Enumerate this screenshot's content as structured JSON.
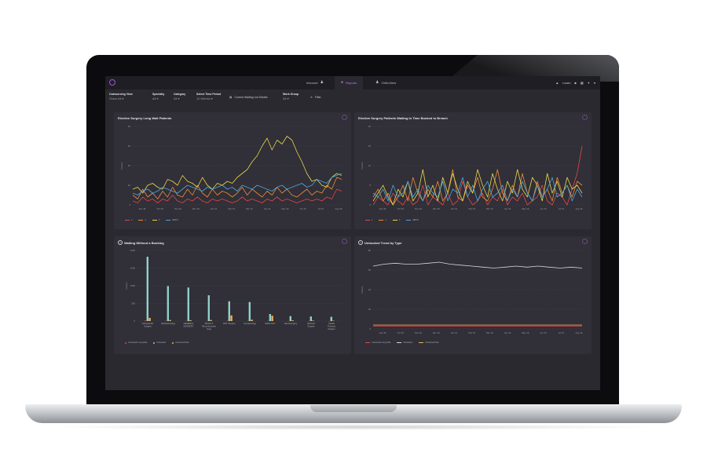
{
  "header": {
    "tabs": [
      {
        "label": "Inbound",
        "icon": "people-icon"
      },
      {
        "label": "Reports",
        "icon": "reports-icon"
      },
      {
        "label": "OrthoView",
        "icon": "people-icon"
      }
    ],
    "user_label": "Learn"
  },
  "filters": [
    {
      "label": "Outsourcing View",
      "value": "Show All"
    },
    {
      "label": "Specialty",
      "value": "All"
    },
    {
      "label": "Category",
      "value": "All"
    },
    {
      "label": "Select Time Period",
      "value": "12 Weeks"
    },
    {
      "label": "Work Group",
      "value": "All"
    }
  ],
  "filter_buttons": {
    "current_waiting": "Current Waiting List Details",
    "filter": "Filter"
  },
  "accent_color": "#a368d8",
  "chart_data": [
    {
      "type": "line",
      "title": "Elective Surgery Long Wait Patients",
      "ylabel": "Patients",
      "ylim": [
        0,
        40
      ],
      "yticks": [
        0,
        10,
        20,
        30,
        40
      ],
      "xticks": [
        "Sep '18",
        "Oct '18",
        "Nov '18",
        "Dec '18",
        "Jan '19",
        "Feb '19",
        "Mar '19",
        "Apr '19",
        "May '19",
        "Jun '19",
        "Jul '19",
        "Aug '19"
      ],
      "series": [
        {
          "name": "1",
          "color": "#e0474c",
          "values": [
            2,
            1,
            4,
            2,
            3,
            1,
            3,
            2,
            5,
            2,
            1,
            3,
            2,
            4,
            2,
            1,
            3,
            2,
            3,
            2,
            1,
            2,
            4,
            2,
            3,
            2,
            1,
            3,
            2,
            4,
            2,
            3,
            2,
            1,
            2,
            3,
            2,
            3,
            2,
            4,
            3,
            8,
            7
          ]
        },
        {
          "name": "2",
          "color": "#ee8a3c",
          "values": [
            5,
            3,
            8,
            4,
            6,
            3,
            7,
            4,
            9,
            5,
            4,
            8,
            5,
            10,
            6,
            4,
            8,
            5,
            7,
            6,
            4,
            6,
            9,
            5,
            8,
            6,
            4,
            7,
            5,
            9,
            6,
            8,
            5,
            4,
            6,
            8,
            5,
            7,
            6,
            10,
            8,
            14,
            13
          ]
        },
        {
          "name": "3",
          "color": "#e8d84a",
          "values": [
            8,
            9,
            6,
            10,
            11,
            9,
            8,
            13,
            12,
            10,
            15,
            12,
            11,
            9,
            14,
            10,
            8,
            11,
            10,
            12,
            11,
            14,
            16,
            18,
            22,
            25,
            30,
            34,
            28,
            33,
            31,
            35,
            33,
            27,
            22,
            16,
            12,
            13,
            10,
            9,
            14,
            16,
            15
          ]
        },
        {
          "name": "MRFS",
          "color": "#4aa8e0",
          "values": [
            6,
            5,
            7,
            8,
            6,
            7,
            9,
            8,
            7,
            6,
            8,
            10,
            9,
            8,
            7,
            9,
            8,
            9,
            10,
            8,
            9,
            7,
            10,
            9,
            8,
            10,
            9,
            8,
            7,
            9,
            10,
            8,
            9,
            10,
            11,
            9,
            10,
            13,
            12,
            11,
            14,
            15,
            16
          ]
        }
      ]
    },
    {
      "type": "line",
      "title": "Elective Surgery Patients Waiting In Time Booked to Breach",
      "ylabel": "Patients",
      "ylim": [
        0,
        20
      ],
      "yticks": [
        0,
        5,
        10,
        15,
        20
      ],
      "xticks": [
        "Sep '18",
        "Oct '18",
        "Nov '18",
        "Dec '18",
        "Jan '19",
        "Feb '19",
        "Mar '19",
        "Apr '19",
        "May '19",
        "Jun '19",
        "Jul '19",
        "Aug '19"
      ],
      "series": [
        {
          "name": "1",
          "color": "#e0474c",
          "values": [
            0,
            2,
            1,
            0,
            3,
            1,
            0,
            2,
            0,
            1,
            5,
            0,
            2,
            1,
            0,
            3,
            0,
            1,
            6,
            2,
            0,
            1,
            3,
            0,
            2,
            1,
            4,
            0,
            2,
            1,
            3,
            0,
            1,
            2,
            5,
            1,
            0,
            3,
            2,
            0,
            4,
            8,
            15
          ]
        },
        {
          "name": "2",
          "color": "#ee8a3c",
          "values": [
            2,
            4,
            1,
            3,
            0,
            2,
            5,
            1,
            7,
            3,
            1,
            4,
            2,
            6,
            1,
            3,
            9,
            2,
            1,
            5,
            3,
            7,
            2,
            1,
            4,
            9,
            3,
            1,
            5,
            2,
            8,
            3,
            1,
            6,
            2,
            4,
            1,
            7,
            3,
            5,
            2,
            6,
            5
          ]
        },
        {
          "name": "3",
          "color": "#e8d84a",
          "values": [
            1,
            3,
            5,
            2,
            0,
            4,
            2,
            6,
            1,
            3,
            9,
            2,
            5,
            1,
            7,
            3,
            8,
            4,
            1,
            6,
            3,
            9,
            5,
            2,
            8,
            4,
            1,
            6,
            3,
            9,
            4,
            2,
            7,
            5,
            1,
            8,
            3,
            6,
            2,
            7,
            4,
            5,
            3
          ]
        },
        {
          "name": "MRFS",
          "color": "#4aa8e0",
          "values": [
            3,
            2,
            4,
            1,
            5,
            2,
            3,
            6,
            2,
            4,
            1,
            5,
            3,
            2,
            6,
            1,
            4,
            3,
            7,
            2,
            5,
            1,
            4,
            6,
            2,
            3,
            5,
            1,
            4,
            2,
            6,
            3,
            1,
            5,
            2,
            4,
            7,
            2,
            3,
            5,
            1,
            4,
            2
          ]
        }
      ]
    },
    {
      "type": "bar",
      "title": "Waiting Without a Booking",
      "ylabel": "Patients",
      "ylim": [
        0,
        2000
      ],
      "yticks": [
        0,
        500,
        1000,
        1500,
        2000
      ],
      "categories": [
        "Orthopaedic Surgery",
        "Ophthalmology",
        "GENERAL SURGERY",
        "Plastic & Reconstructive Surg",
        "ENT Surgery",
        "Gynaecology",
        "UROLOGY",
        "Neurosurgery",
        "Vascular Surgery",
        "Cardio Thoracic Surgery"
      ],
      "series": [
        {
          "name": "Unbooked Long Wait",
          "color": "#e0474c",
          "values": [
            15,
            5,
            5,
            3,
            8,
            3,
            5,
            2,
            2,
            1
          ]
        },
        {
          "name": "Unbooked",
          "color": "#8fd1c8",
          "values": [
            1820,
            990,
            950,
            730,
            560,
            540,
            200,
            140,
            130,
            120
          ]
        },
        {
          "name": "Unbooked Risk",
          "color": "#f0b15a",
          "values": [
            90,
            30,
            25,
            30,
            160,
            40,
            150,
            20,
            15,
            10
          ]
        }
      ]
    },
    {
      "type": "line",
      "title": "Unbooked Trend by Type",
      "ylabel": "Patients",
      "ylim": [
        0,
        80
      ],
      "yticks": [
        0,
        20,
        40,
        60,
        80
      ],
      "xticks": [
        "Sep '18",
        "Oct '18",
        "Nov '18",
        "Dec '18",
        "Jan '19",
        "Feb '19",
        "Mar '19",
        "Apr '19",
        "May '19",
        "Jun '19",
        "Jul '19",
        "Aug '19"
      ],
      "series": [
        {
          "name": "Unbooked Long Wait",
          "color": "#e0474c",
          "values": [
            3,
            3,
            3,
            3,
            3,
            3,
            3,
            3,
            3,
            3,
            3,
            3,
            3,
            3,
            3,
            3,
            3,
            3,
            3,
            3
          ]
        },
        {
          "name": "Unbooked",
          "color": "#d6d6dc",
          "values": [
            64,
            66,
            67,
            66,
            66,
            67,
            68,
            66,
            65,
            64,
            63,
            62,
            63,
            64,
            63,
            64,
            63,
            62,
            63,
            62
          ]
        },
        {
          "name": "Unbooked Risk",
          "color": "#f0b15a",
          "values": [
            4,
            4,
            4,
            4,
            4,
            4,
            4,
            4,
            4,
            4,
            4,
            4,
            4,
            4,
            4,
            4,
            4,
            4,
            4,
            4
          ]
        }
      ]
    }
  ]
}
